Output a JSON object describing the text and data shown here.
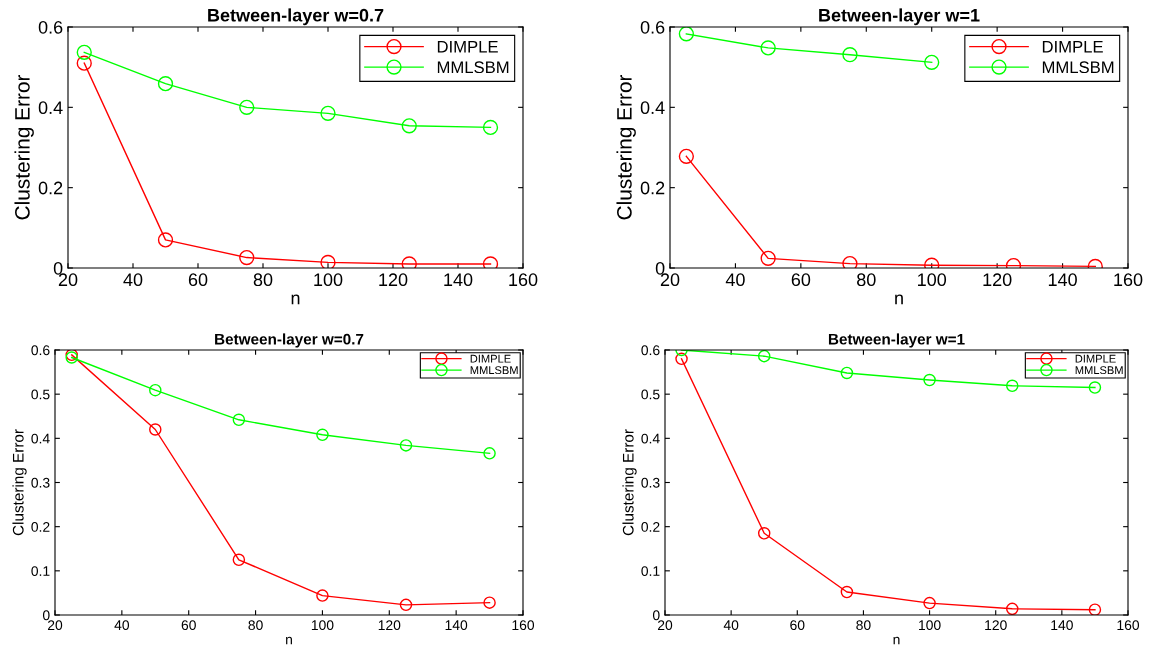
{
  "chart_data": [
    {
      "type": "line",
      "title": "Between-layer w=0.7",
      "xlabel": "n",
      "ylabel": "Clustering Error",
      "x": [
        25,
        50,
        75,
        100,
        125,
        150
      ],
      "xlim": [
        20,
        160
      ],
      "xticks": [
        20,
        40,
        60,
        80,
        100,
        120,
        140,
        160
      ],
      "ylim": [
        0,
        0.6
      ],
      "yticks": [
        0,
        0.2,
        0.4,
        0.6
      ],
      "marker": "circle",
      "legend": "top right",
      "grid": false,
      "series": [
        {
          "name": "DIMPLE",
          "color": "#ff0000",
          "values": [
            0.51,
            0.07,
            0.026,
            0.014,
            0.01,
            0.01
          ]
        },
        {
          "name": "MMLSBM",
          "color": "#00ff00",
          "values": [
            0.537,
            0.459,
            0.4,
            0.385,
            0.354,
            0.35
          ]
        }
      ]
    },
    {
      "type": "line",
      "title": "Between-layer w=1",
      "xlabel": "n",
      "ylabel": "Clustering Error",
      "x": [
        25,
        50,
        75,
        100,
        125,
        150
      ],
      "xlim": [
        20,
        160
      ],
      "xticks": [
        20,
        40,
        60,
        80,
        100,
        120,
        140,
        160
      ],
      "ylim": [
        0,
        0.6
      ],
      "yticks": [
        0,
        0.2,
        0.4,
        0.6
      ],
      "marker": "circle",
      "legend": "top right",
      "grid": false,
      "series": [
        {
          "name": "DIMPLE",
          "color": "#ff0000",
          "values": [
            0.278,
            0.024,
            0.011,
            0.007,
            0.006,
            0.004
          ]
        },
        {
          "name": "MMLSBM",
          "color": "#00ff00",
          "values": [
            0.583,
            0.548,
            0.531,
            0.512,
            null,
            null
          ]
        }
      ]
    },
    {
      "type": "line",
      "title": "Between-layer w=0.7",
      "xlabel": "n",
      "ylabel": "Clustering Error",
      "x": [
        25,
        50,
        75,
        100,
        125,
        150
      ],
      "xlim": [
        20,
        160
      ],
      "xticks": [
        20,
        40,
        60,
        80,
        100,
        120,
        140,
        160
      ],
      "ylim": [
        0,
        0.6
      ],
      "yticks": [
        0,
        0.1,
        0.2,
        0.3,
        0.4,
        0.5,
        0.6
      ],
      "marker": "circle",
      "legend": "top right",
      "grid": false,
      "series": [
        {
          "name": "DIMPLE",
          "color": "#ff0000",
          "values": [
            0.589,
            0.42,
            0.125,
            0.044,
            0.023,
            0.028
          ]
        },
        {
          "name": "MMLSBM",
          "color": "#00ff00",
          "values": [
            0.583,
            0.509,
            0.442,
            0.408,
            0.384,
            0.366
          ]
        }
      ]
    },
    {
      "type": "line",
      "title": "Between-layer w=1",
      "xlabel": "n",
      "ylabel": "Clustering Error",
      "x": [
        25,
        50,
        75,
        100,
        125,
        150
      ],
      "xlim": [
        20,
        160
      ],
      "xticks": [
        20,
        40,
        60,
        80,
        100,
        120,
        140,
        160
      ],
      "ylim": [
        0,
        0.6
      ],
      "yticks": [
        0,
        0.1,
        0.2,
        0.3,
        0.4,
        0.5,
        0.6
      ],
      "marker": "circle",
      "legend": "top right",
      "grid": false,
      "series": [
        {
          "name": "DIMPLE",
          "color": "#ff0000",
          "values": [
            0.58,
            0.185,
            0.052,
            0.027,
            0.014,
            0.012
          ]
        },
        {
          "name": "MMLSBM",
          "color": "#00ff00",
          "values": [
            0.6,
            0.586,
            0.548,
            0.532,
            0.519,
            0.515
          ]
        }
      ]
    }
  ]
}
